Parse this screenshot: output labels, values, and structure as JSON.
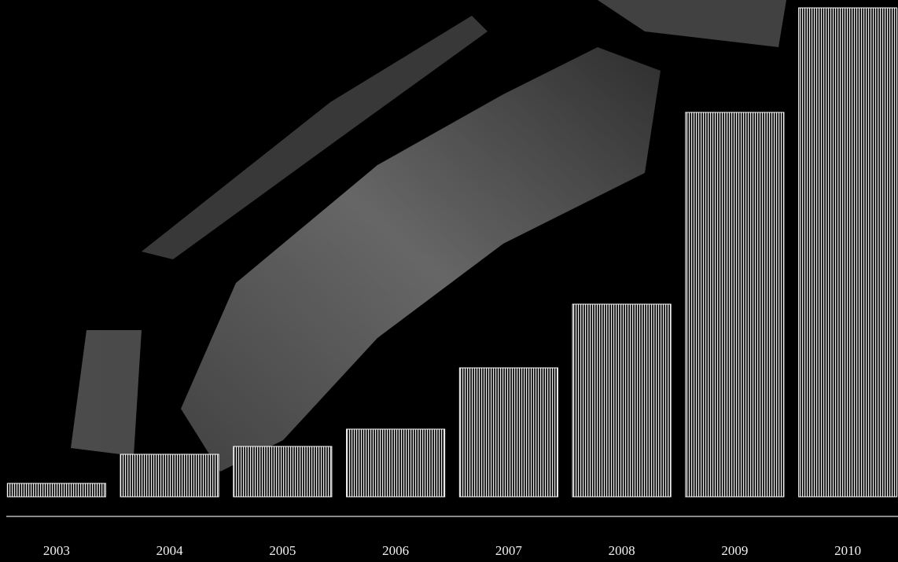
{
  "chart_data": {
    "type": "bar",
    "categories": [
      "2003",
      "2004",
      "2005",
      "2006",
      "2007",
      "2008",
      "2009",
      "2010"
    ],
    "values": [
      17,
      54,
      64,
      86,
      164,
      245,
      489,
      622
    ],
    "color": "#ffffff",
    "ylim": [
      0,
      622
    ]
  }
}
